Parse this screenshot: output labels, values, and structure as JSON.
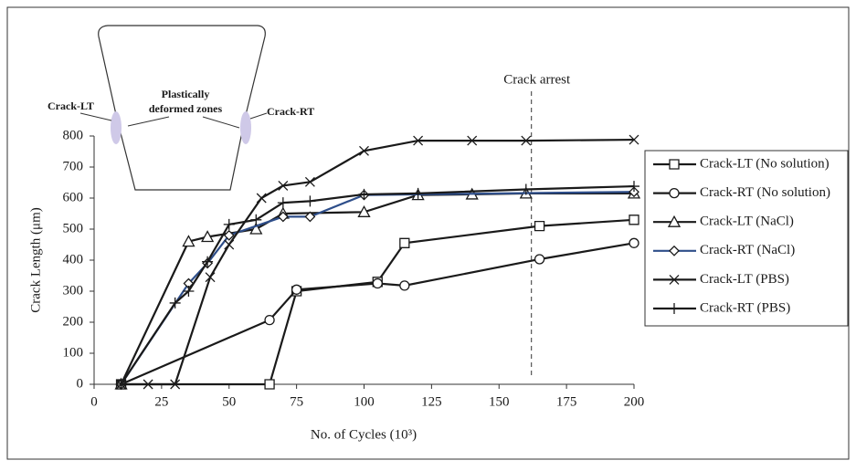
{
  "chart_data": {
    "type": "line",
    "x_label": "No. of Cycles (10³)",
    "y_label": "Crack Length (μm)",
    "xlim": [
      0,
      200
    ],
    "xticks": [
      0,
      25,
      50,
      75,
      100,
      125,
      150,
      175,
      200
    ],
    "ylim": [
      0,
      800
    ],
    "yticks": [
      0,
      100,
      200,
      300,
      400,
      500,
      600,
      700,
      800
    ],
    "legend": "right",
    "annotations": [
      {
        "text": "Crack arrest",
        "x": 162
      }
    ],
    "inset": {
      "zone_label": [
        "Plastically",
        "deformed zones"
      ],
      "left_label": "Crack-LT",
      "right_label": "Crack-RT"
    },
    "series": [
      {
        "name": "Crack-LT (No solution)",
        "color": "#1a1a1a",
        "marker": "square",
        "x": [
          10,
          65,
          75,
          105,
          115,
          165,
          200
        ],
        "values": [
          0,
          0,
          300,
          330,
          455,
          510,
          530
        ]
      },
      {
        "name": "Crack-RT (No solution)",
        "color": "#1a1a1a",
        "marker": "circle",
        "x": [
          10,
          65,
          75,
          105,
          115,
          165,
          200
        ],
        "values": [
          0,
          207,
          305,
          325,
          318,
          403,
          455
        ]
      },
      {
        "name": "Crack-LT (NaCl)",
        "color": "#1a1a1a",
        "marker": "triangle",
        "x": [
          10,
          35,
          42,
          60,
          70,
          100,
          120,
          140,
          160,
          200
        ],
        "values": [
          0,
          460,
          475,
          500,
          550,
          555,
          610,
          612,
          615,
          615
        ]
      },
      {
        "name": "Crack-RT (NaCl)",
        "color": "#2e4e8a",
        "marker": "diamond",
        "x": [
          10,
          35,
          42,
          50,
          70,
          80,
          100,
          200
        ],
        "values": [
          0,
          325,
          390,
          480,
          540,
          540,
          610,
          620
        ]
      },
      {
        "name": "Crack-LT (PBS)",
        "color": "#1a1a1a",
        "marker": "x",
        "x": [
          10,
          20,
          30,
          43,
          50,
          62,
          70,
          80,
          100,
          120,
          140,
          160,
          200
        ],
        "values": [
          0,
          0,
          0,
          345,
          450,
          600,
          640,
          652,
          752,
          785,
          785,
          785,
          788
        ]
      },
      {
        "name": "Crack-RT (PBS)",
        "color": "#1a1a1a",
        "marker": "plus",
        "x": [
          10,
          30,
          35,
          42,
          50,
          60,
          70,
          80,
          100,
          120,
          160,
          200
        ],
        "values": [
          0,
          262,
          300,
          395,
          515,
          530,
          585,
          590,
          612,
          615,
          628,
          638
        ]
      }
    ]
  }
}
